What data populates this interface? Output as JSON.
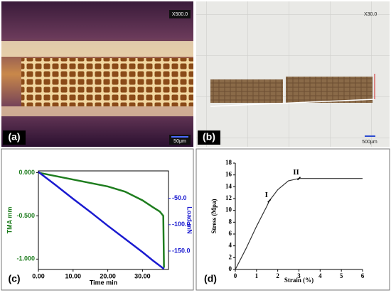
{
  "panels": {
    "a": {
      "label": "(a)",
      "magnification": "X500.0",
      "scale_bar": "50μm"
    },
    "b": {
      "label": "(b)",
      "magnification": "X30.0",
      "scale_bar": "500μm"
    },
    "c": {
      "label": "(c)"
    },
    "d": {
      "label": "(d)"
    }
  },
  "chart_data": [
    {
      "type": "line",
      "xlabel": "Time min",
      "ylabel": "TMA mm",
      "y2label": "Load mN",
      "x": [
        0,
        5,
        10,
        15,
        20,
        25,
        30,
        33,
        35,
        36,
        36.2
      ],
      "xlim": [
        0,
        37.5
      ],
      "xticks": [
        {
          "value": 0,
          "label": "0.00"
        },
        {
          "value": 10,
          "label": "10.00"
        },
        {
          "value": 20,
          "label": "20.00"
        },
        {
          "value": 30,
          "label": "30.00"
        }
      ],
      "ylim": [
        -1.12,
        0.02
      ],
      "yticks": [
        {
          "value": 0,
          "label": "0.000"
        },
        {
          "value": -0.5,
          "label": "-0.500"
        },
        {
          "value": -1,
          "label": "-1.000"
        }
      ],
      "y2lim": [
        -185,
        2
      ],
      "y2ticks": [
        {
          "value": -50,
          "label": "-50.0"
        },
        {
          "value": -100,
          "label": "-100.0"
        },
        {
          "value": -150,
          "label": "-150.0"
        }
      ],
      "series": [
        {
          "color": "#1e7d1e",
          "values": [
            0,
            -0.04,
            -0.08,
            -0.12,
            -0.16,
            -0.22,
            -0.32,
            -0.4,
            -0.45,
            -0.5,
            -1.1
          ]
        },
        {
          "color": "#1a1ad0",
          "axis": "y2",
          "values": [
            0,
            -25,
            -51,
            -76,
            -102,
            -127,
            -152,
            -168,
            -178,
            -183,
            -184
          ]
        }
      ]
    },
    {
      "type": "line",
      "xlabel": "Strain (%)",
      "ylabel": "Stress (Mpa)",
      "x": [
        0,
        0.5,
        1,
        1.5,
        1.6,
        2,
        2.5,
        3,
        6
      ],
      "xlim": [
        0,
        6
      ],
      "xticks": [
        0,
        1,
        2,
        3,
        4,
        5,
        6
      ],
      "ylim": [
        0,
        18
      ],
      "yticks": [
        0,
        2,
        4,
        6,
        8,
        10,
        12,
        14,
        16,
        18
      ],
      "series": [
        {
          "color": "#333333",
          "values": [
            0,
            3.5,
            7.3,
            10.8,
            11.6,
            13.5,
            15,
            15.4,
            15.4
          ]
        }
      ],
      "annotations": [
        {
          "text": "I",
          "x": 1.6,
          "y": 11.6
        },
        {
          "text": "II",
          "x": 3,
          "y": 15.4
        }
      ]
    }
  ]
}
